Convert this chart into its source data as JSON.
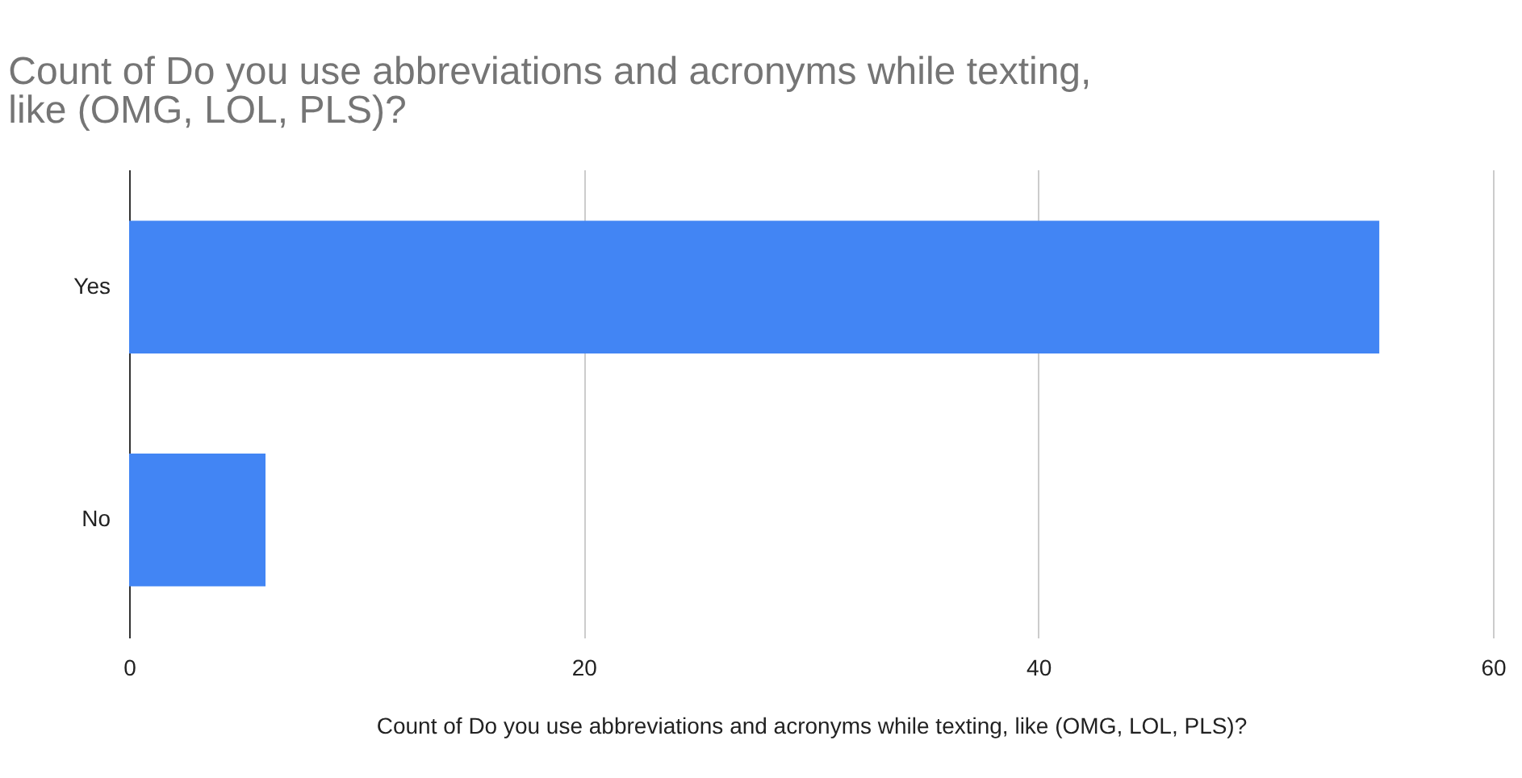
{
  "chart_data": {
    "type": "bar",
    "orientation": "horizontal",
    "title": "Count of Do you use abbreviations and acronyms while texting, like (OMG, LOL, PLS)?",
    "xlabel": "Count of Do you use abbreviations and acronyms while texting, like (OMG, LOL, PLS)?",
    "categories": [
      "Yes",
      "No"
    ],
    "values": [
      55,
      6
    ],
    "color": "#4285f4",
    "xlim": [
      0,
      60
    ],
    "xticks": [
      0,
      20,
      40,
      60
    ],
    "grid": "x"
  }
}
